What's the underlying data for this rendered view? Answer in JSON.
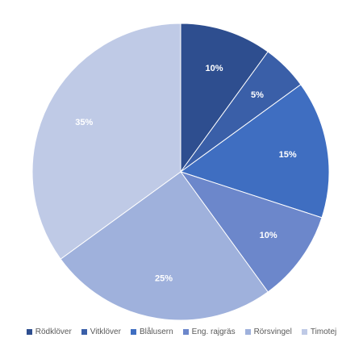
{
  "chart_data": {
    "type": "pie",
    "categories": [
      "Rödklöver",
      "Vitklöver",
      "Blålusern",
      "Eng. rajgräs",
      "Rörsvingel",
      "Timotej"
    ],
    "values": [
      10,
      5,
      15,
      10,
      25,
      35
    ],
    "data_labels": [
      "10%",
      "5%",
      "15%",
      "10%",
      "25%",
      "35%"
    ],
    "colors": [
      "#2e4e8f",
      "#3a5fa8",
      "#3f6ec1",
      "#6c87cb",
      "#9fb1dc",
      "#bfcaE6"
    ],
    "start_angle_deg": 0,
    "direction": "clockwise",
    "legend_position": "bottom",
    "title": ""
  }
}
